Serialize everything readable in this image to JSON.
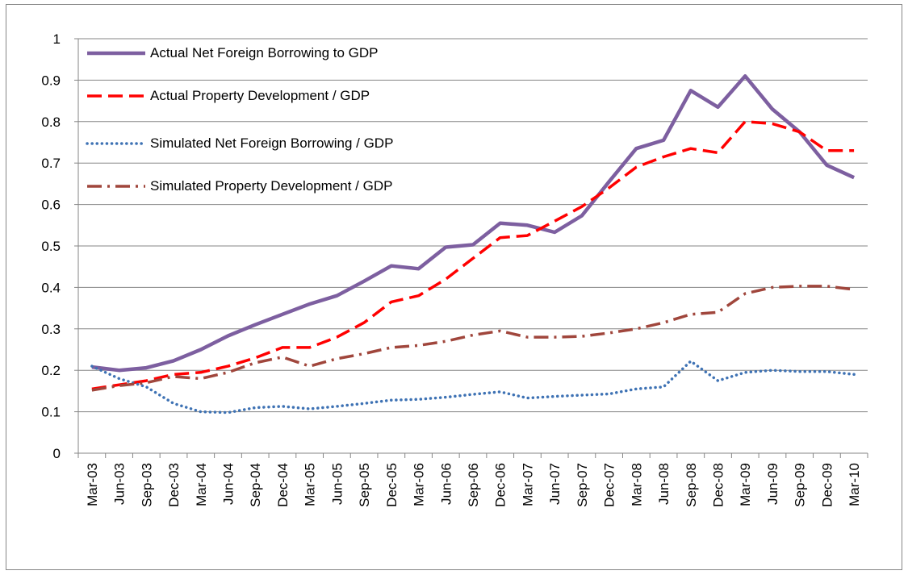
{
  "chart_data": {
    "type": "line",
    "categories": [
      "Mar-03",
      "Jun-03",
      "Sep-03",
      "Dec-03",
      "Mar-04",
      "Jun-04",
      "Sep-04",
      "Dec-04",
      "Mar-05",
      "Jun-05",
      "Sep-05",
      "Dec-05",
      "Mar-06",
      "Jun-06",
      "Sep-06",
      "Dec-06",
      "Mar-07",
      "Jun-07",
      "Sep-07",
      "Dec-07",
      "Mar-08",
      "Jun-08",
      "Sep-08",
      "Dec-08",
      "Mar-09",
      "Jun-09",
      "Sep-09",
      "Dec-09",
      "Mar-10"
    ],
    "series": [
      {
        "name": "Actual Net Foreign Borrowing to GDP",
        "color": "#7d5fa0",
        "style": "solid",
        "values": [
          0.208,
          0.2,
          0.206,
          0.223,
          0.25,
          0.283,
          0.31,
          0.335,
          0.36,
          0.38,
          0.415,
          0.452,
          0.445,
          0.497,
          0.503,
          0.555,
          0.55,
          0.533,
          0.573,
          0.655,
          0.735,
          0.755,
          0.875,
          0.835,
          0.91,
          0.83,
          0.775,
          0.695,
          0.665
        ]
      },
      {
        "name": "Actual Property Development / GDP",
        "color": "#ff0000",
        "style": "dashed",
        "values": [
          0.155,
          0.165,
          0.175,
          0.19,
          0.195,
          0.21,
          0.23,
          0.255,
          0.255,
          0.28,
          0.315,
          0.365,
          0.38,
          0.42,
          0.47,
          0.52,
          0.525,
          0.56,
          0.595,
          0.64,
          0.69,
          0.715,
          0.735,
          0.725,
          0.8,
          0.795,
          0.775,
          0.73,
          0.73
        ]
      },
      {
        "name": "Simulated Net Foreign Borrowing / GDP",
        "color": "#3e72b4",
        "style": "dotted",
        "values": [
          0.21,
          0.18,
          0.16,
          0.12,
          0.1,
          0.098,
          0.11,
          0.113,
          0.107,
          0.113,
          0.12,
          0.128,
          0.13,
          0.135,
          0.142,
          0.148,
          0.133,
          0.137,
          0.14,
          0.143,
          0.155,
          0.16,
          0.222,
          0.175,
          0.195,
          0.2,
          0.197,
          0.197,
          0.19
        ]
      },
      {
        "name": "Simulated Property Development / GDP",
        "color": "#a0463c",
        "style": "dashdot",
        "values": [
          0.152,
          0.163,
          0.17,
          0.185,
          0.18,
          0.195,
          0.218,
          0.232,
          0.21,
          0.228,
          0.24,
          0.255,
          0.26,
          0.27,
          0.285,
          0.295,
          0.28,
          0.28,
          0.282,
          0.29,
          0.3,
          0.315,
          0.335,
          0.34,
          0.385,
          0.4,
          0.403,
          0.403,
          0.395
        ]
      }
    ],
    "ylim": [
      0,
      1
    ],
    "yticks": [
      0,
      {
        "value": 0.1,
        "label": "0.1"
      },
      {
        "value": 0.2,
        "label": "0.2"
      },
      {
        "value": 0.3,
        "label": "0.3"
      },
      {
        "value": 0.4,
        "label": "0.4"
      },
      {
        "value": 0.5,
        "label": "0.5"
      },
      {
        "value": 0.6,
        "label": "0.6"
      },
      {
        "value": 0.7,
        "label": "0.7"
      },
      {
        "value": 0.8,
        "label": "0.8"
      },
      {
        "value": 0.9,
        "label": "0.9"
      },
      1
    ],
    "grid": true,
    "legend": "upper-left"
  }
}
